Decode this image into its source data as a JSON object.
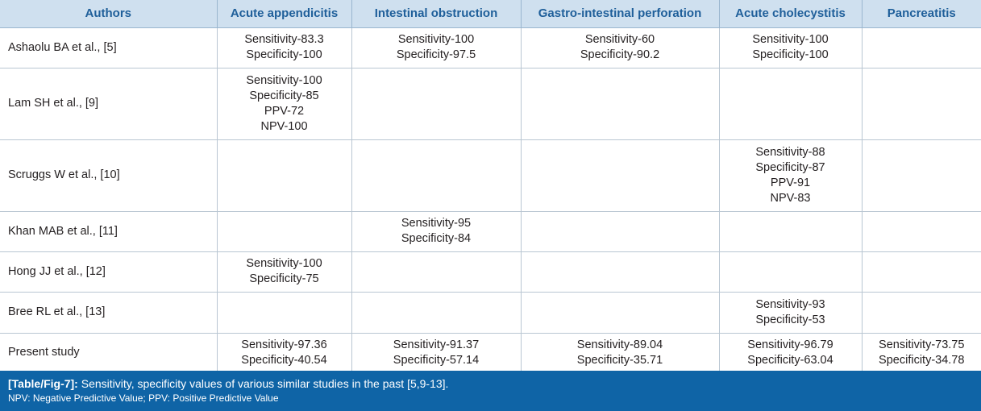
{
  "table": {
    "headers": [
      "Authors",
      "Acute appendicitis",
      "Intestinal obstruction",
      "Gastro-intestinal perforation",
      "Acute cholecystitis",
      "Pancreatitis"
    ],
    "rows": [
      {
        "author": "Ashaolu BA et al., [5]",
        "cells": [
          [
            "Sensitivity-83.3",
            "Specificity-100"
          ],
          [
            "Sensitivity-100",
            "Specificity-97.5"
          ],
          [
            "Sensitivity-60",
            "Specificity-90.2"
          ],
          [
            "Sensitivity-100",
            "Specificity-100"
          ],
          []
        ]
      },
      {
        "author": "Lam SH et al., [9]",
        "cells": [
          [
            "Sensitivity-100",
            "Specificity-85",
            "PPV-72",
            "NPV-100"
          ],
          [],
          [],
          [],
          []
        ]
      },
      {
        "author": "Scruggs W et al., [10]",
        "cells": [
          [],
          [],
          [],
          [
            "Sensitivity-88",
            "Specificity-87",
            "PPV-91",
            "NPV-83"
          ],
          []
        ]
      },
      {
        "author": "Khan MAB et al., [11]",
        "cells": [
          [],
          [
            "Sensitivity-95",
            "Specificity-84"
          ],
          [],
          [],
          []
        ]
      },
      {
        "author": "Hong JJ et al., [12]",
        "cells": [
          [
            "Sensitivity-100",
            "Specificity-75"
          ],
          [],
          [],
          [],
          []
        ]
      },
      {
        "author": "Bree RL et al., [13]",
        "cells": [
          [],
          [],
          [],
          [
            "Sensitivity-93",
            "Specificity-53"
          ],
          []
        ]
      },
      {
        "author": "Present study",
        "cells": [
          [
            "Sensitivity-97.36",
            "Specificity-40.54"
          ],
          [
            "Sensitivity-91.37",
            "Specificity-57.14"
          ],
          [
            "Sensitivity-89.04",
            "Specificity-35.71"
          ],
          [
            "Sensitivity-96.79",
            "Specificity-63.04"
          ],
          [
            "Sensitivity-73.75",
            "Specificity-34.78"
          ]
        ]
      }
    ]
  },
  "caption": {
    "label": "[Table/Fig-7]:",
    "text": "Sensitivity, specificity values of various similar studies in the past [5,9-13].",
    "footnote": "NPV: Negative Predictive Value; PPV: Positive Predictive Value"
  }
}
